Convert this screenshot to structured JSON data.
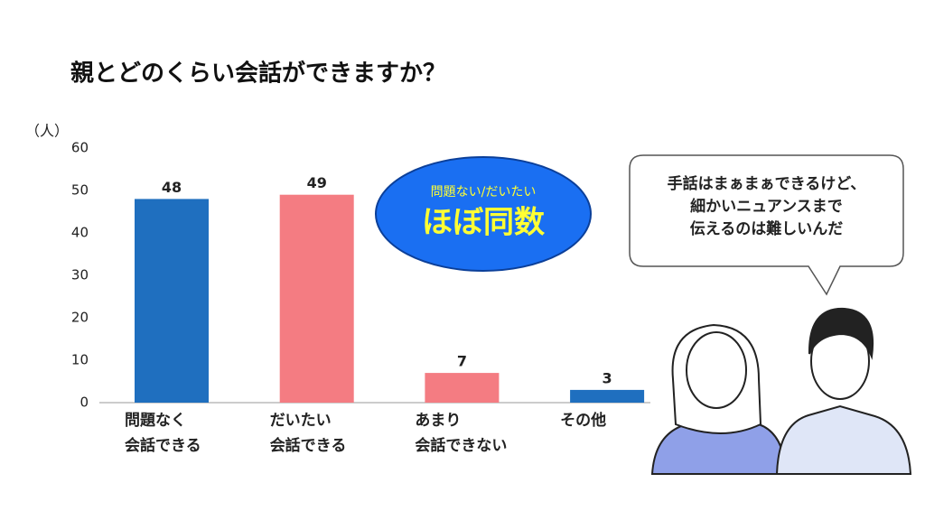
{
  "chart_data": {
    "type": "bar",
    "title": "親とどのくらい会話ができますか？",
    "y_label": "（人）",
    "categories": [
      "問題なく\n会話できる",
      "だいたい\n会話できる",
      "あまり\n会話できない",
      "その他"
    ],
    "values": [
      48,
      49,
      7,
      3
    ],
    "colors": [
      "#1f6fbf",
      "#f47c82",
      "#f47c82",
      "#1f6fbf"
    ],
    "ylim": [
      0,
      60
    ],
    "yticks": [
      0,
      10,
      20,
      30,
      40,
      50,
      60
    ],
    "grid": false,
    "annotation": {
      "small": "問題ない/だいたい",
      "large": "ほぼ同数"
    },
    "speech_bubble": "手話はまぁまぁできるけど、\n細かいニュアンスまで\n伝えるのは難しいんだ"
  }
}
